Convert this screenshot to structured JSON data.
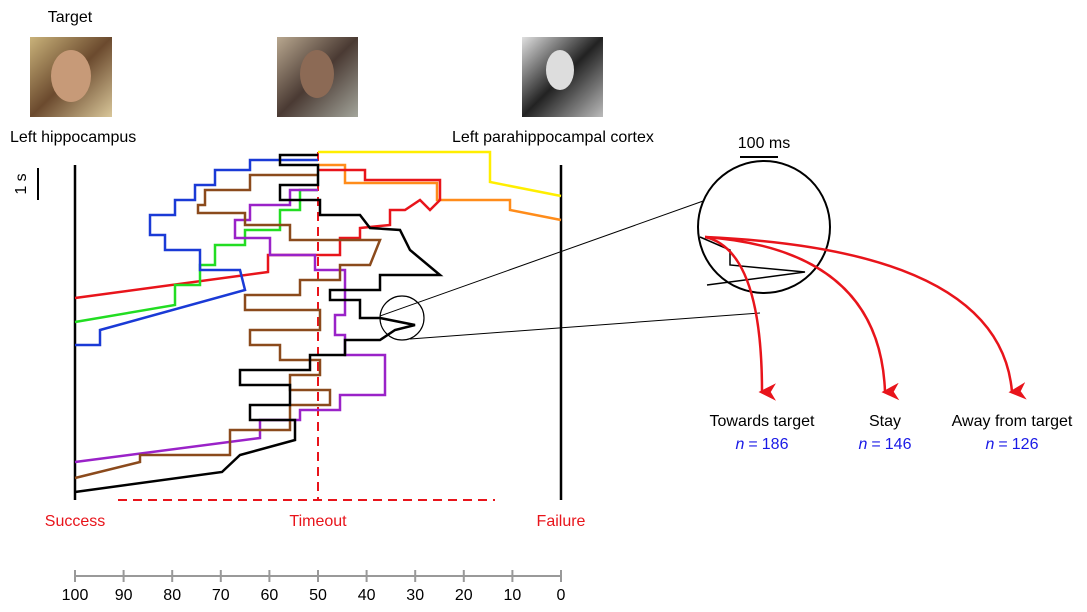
{
  "figure": {
    "target_label": "Target",
    "left_label": "Left hippocampus",
    "right_label": "Left parahippocampal cortex",
    "time_scale": "1 s",
    "zoom_scale": "100 ms",
    "endpoints": [
      "Success",
      "Timeout",
      "Failure"
    ],
    "outcomes": [
      {
        "label": "Towards target",
        "count_symbol": "n",
        "count_relation": "=",
        "count": 186
      },
      {
        "label": "Stay",
        "count_symbol": "n",
        "count_relation": "=",
        "count": 146
      },
      {
        "label": "Away from target",
        "count_symbol": "n",
        "count_relation": "=",
        "count": 126
      }
    ],
    "scale_axis": {
      "xlim": [
        100,
        0
      ],
      "xticks": [
        100,
        90,
        80,
        70,
        60,
        50,
        40,
        30,
        20,
        10,
        0
      ]
    }
  }
}
